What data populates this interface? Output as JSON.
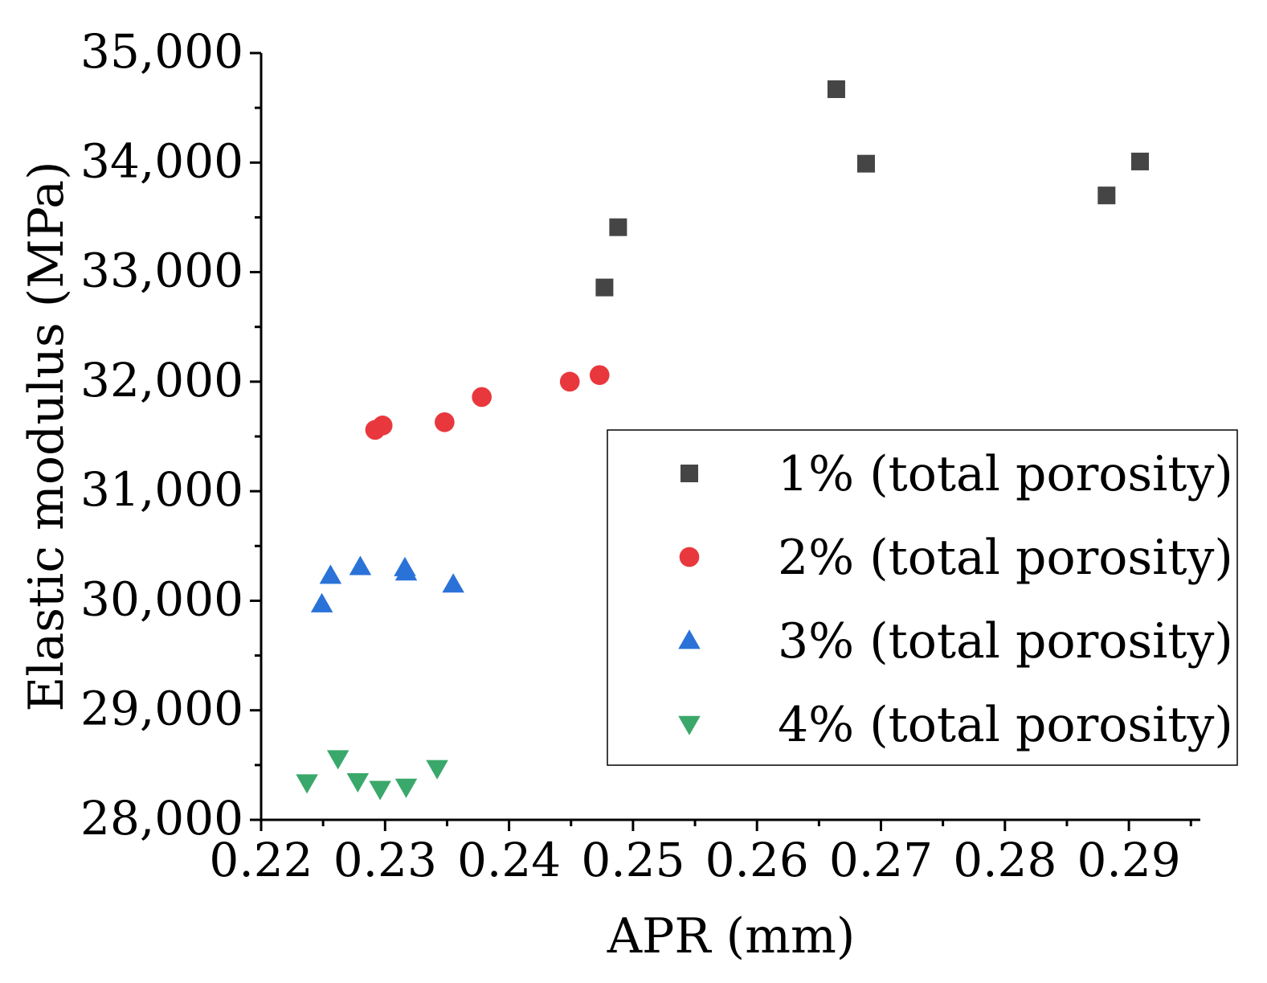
{
  "chart_data": {
    "type": "scatter",
    "xlabel": "APR (mm)",
    "ylabel": "Elastic modulus (MPa)",
    "xlim": [
      0.22,
      0.295
    ],
    "ylim": [
      28000,
      35000
    ],
    "x_ticks": [
      0.22,
      0.23,
      0.24,
      0.25,
      0.26,
      0.27,
      0.28,
      0.29
    ],
    "x_tick_labels": [
      "0.22",
      "0.23",
      "0.24",
      "0.25",
      "0.26",
      "0.27",
      "0.28",
      "0.29"
    ],
    "y_ticks": [
      28000,
      29000,
      30000,
      31000,
      32000,
      33000,
      34000,
      35000
    ],
    "y_tick_labels": [
      "28,000",
      "29,000",
      "30,000",
      "31,000",
      "32,000",
      "33,000",
      "34,000",
      "35,000"
    ],
    "legend_position": "center-right",
    "series": [
      {
        "name": "1% (total porosity)",
        "marker": "square",
        "color": "#454545",
        "points": [
          [
            0.2477,
            32860
          ],
          [
            0.2488,
            33410
          ],
          [
            0.2664,
            34670
          ],
          [
            0.2688,
            33990
          ],
          [
            0.2882,
            33700
          ],
          [
            0.2909,
            34010
          ]
        ]
      },
      {
        "name": "2% (total porosity)",
        "marker": "circle",
        "color": "#e8383d",
        "points": [
          [
            0.2292,
            31560
          ],
          [
            0.2298,
            31600
          ],
          [
            0.2348,
            31630
          ],
          [
            0.2378,
            31860
          ],
          [
            0.2449,
            32000
          ],
          [
            0.2473,
            32060
          ]
        ]
      },
      {
        "name": "3% (total porosity)",
        "marker": "triangle-up",
        "color": "#2a72d8",
        "points": [
          [
            0.2249,
            29970
          ],
          [
            0.2256,
            30230
          ],
          [
            0.228,
            30310
          ],
          [
            0.2316,
            30300
          ],
          [
            0.2317,
            30260
          ],
          [
            0.2355,
            30150
          ]
        ]
      },
      {
        "name": "4% (total porosity)",
        "marker": "triangle-down",
        "color": "#3aa86a",
        "points": [
          [
            0.2237,
            28340
          ],
          [
            0.2262,
            28560
          ],
          [
            0.2278,
            28350
          ],
          [
            0.2296,
            28280
          ],
          [
            0.2317,
            28300
          ],
          [
            0.2342,
            28470
          ]
        ]
      }
    ]
  }
}
